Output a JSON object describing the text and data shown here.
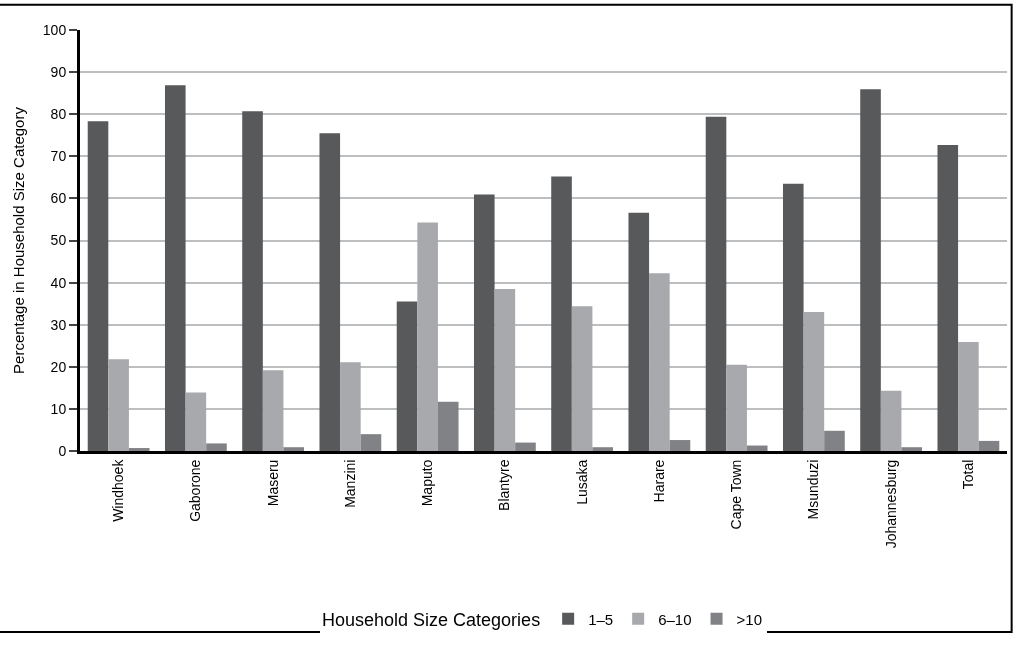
{
  "chart_data": {
    "type": "bar",
    "ylabel": "Percentage in Household Size Category",
    "legend_title": "Household Size Categories",
    "categories": [
      "Windhoek",
      "Gaborone",
      "Maseru",
      "Manzini",
      "Maputo",
      "Blantyre",
      "Lusaka",
      "Harare",
      "Cape Town",
      "Msunduzi",
      "Johannesburg",
      "Total"
    ],
    "series": [
      {
        "name": "1–5",
        "color": "#58595b",
        "values": [
          78.3,
          86.9,
          80.7,
          75.5,
          35.5,
          60.9,
          65.2,
          56.6,
          79.4,
          63.5,
          85.9,
          72.7
        ]
      },
      {
        "name": "6–10",
        "color": "#a7a9ac",
        "values": [
          21.8,
          13.9,
          19.2,
          21.1,
          54.3,
          38.5,
          34.4,
          42.2,
          20.5,
          33.0,
          14.3,
          25.9
        ]
      },
      {
        "name": ">10",
        "color": "#808285",
        "values": [
          0.7,
          1.8,
          0.9,
          4.0,
          11.7,
          2.0,
          0.9,
          2.6,
          1.3,
          4.8,
          0.9,
          2.4
        ]
      }
    ],
    "ylim": [
      0,
      100
    ],
    "yticks": [
      0,
      10,
      20,
      30,
      40,
      50,
      60,
      70,
      80,
      90,
      100
    ],
    "grid": "y",
    "legend": "bottom"
  }
}
